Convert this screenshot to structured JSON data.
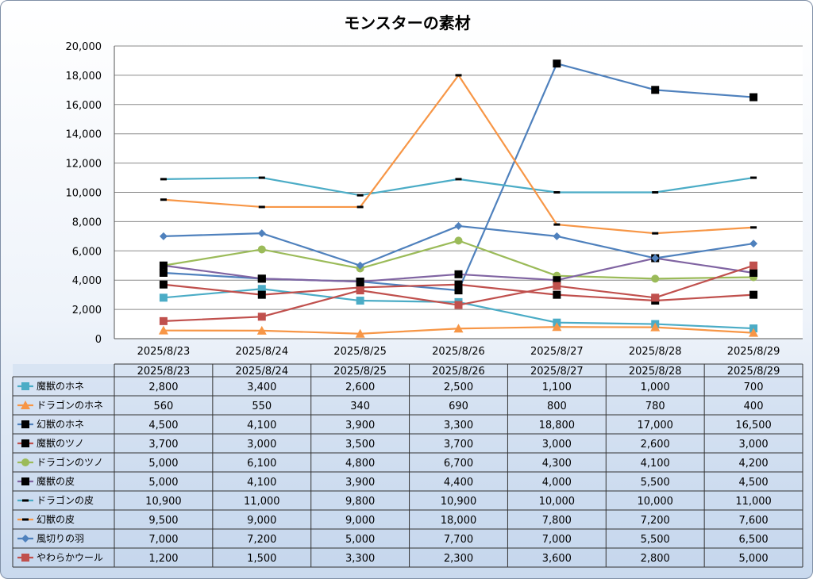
{
  "chart_data": {
    "type": "line",
    "title": "モンスターの素材",
    "categories": [
      "2025/8/23",
      "2025/8/24",
      "2025/8/25",
      "2025/8/26",
      "2025/8/27",
      "2025/8/28",
      "2025/8/29"
    ],
    "ylim": [
      0,
      20000
    ],
    "yticks": [
      "0",
      "2,000",
      "4,000",
      "6,000",
      "8,000",
      "10,000",
      "12,000",
      "14,000",
      "16,000",
      "18,000",
      "20,000"
    ],
    "grid": true,
    "legend": "data-table-below",
    "series": [
      {
        "name": "魔獣のホネ",
        "color": "#4bacc6",
        "marker": "square",
        "values": [
          2800,
          3400,
          2600,
          2500,
          1100,
          1000,
          700
        ],
        "labels": [
          "2,800",
          "3,400",
          "2,600",
          "2,500",
          "1,100",
          "1,000",
          "700"
        ]
      },
      {
        "name": "ドラゴンのホネ",
        "color": "#f79646",
        "marker": "triangle",
        "values": [
          560,
          550,
          340,
          690,
          800,
          780,
          400
        ],
        "labels": [
          "560",
          "550",
          "340",
          "690",
          "800",
          "780",
          "400"
        ]
      },
      {
        "name": "幻獣のホネ",
        "color": "#4f81bd",
        "marker": "blacksquare",
        "values": [
          4500,
          4100,
          3900,
          3300,
          18800,
          17000,
          16500
        ],
        "labels": [
          "4,500",
          "4,100",
          "3,900",
          "3,300",
          "18,800",
          "17,000",
          "16,500"
        ]
      },
      {
        "name": "魔獣のツノ",
        "color": "#c0504d",
        "marker": "blacksquare",
        "values": [
          3700,
          3000,
          3500,
          3700,
          3000,
          2600,
          3000
        ],
        "labels": [
          "3,700",
          "3,000",
          "3,500",
          "3,700",
          "3,000",
          "2,600",
          "3,000"
        ]
      },
      {
        "name": "ドラゴンのツノ",
        "color": "#9bbb59",
        "marker": "circle",
        "values": [
          5000,
          6100,
          4800,
          6700,
          4300,
          4100,
          4200
        ],
        "labels": [
          "5,000",
          "6,100",
          "4,800",
          "6,700",
          "4,300",
          "4,100",
          "4,200"
        ]
      },
      {
        "name": "魔獣の皮",
        "color": "#8064a2",
        "marker": "blacksquare",
        "values": [
          5000,
          4100,
          3900,
          4400,
          4000,
          5500,
          4500
        ],
        "labels": [
          "5,000",
          "4,100",
          "3,900",
          "4,400",
          "4,000",
          "5,500",
          "4,500"
        ]
      },
      {
        "name": "ドラゴンの皮",
        "color": "#4bacc6",
        "marker": "dash",
        "values": [
          10900,
          11000,
          9800,
          10900,
          10000,
          10000,
          11000
        ],
        "labels": [
          "10,900",
          "11,000",
          "9,800",
          "10,900",
          "10,000",
          "10,000",
          "11,000"
        ]
      },
      {
        "name": "幻獣の皮",
        "color": "#f79646",
        "marker": "dash",
        "values": [
          9500,
          9000,
          9000,
          18000,
          7800,
          7200,
          7600
        ],
        "labels": [
          "9,500",
          "9,000",
          "9,000",
          "18,000",
          "7,800",
          "7,200",
          "7,600"
        ]
      },
      {
        "name": "風切りの羽",
        "color": "#4f81bd",
        "marker": "diamond",
        "values": [
          7000,
          7200,
          5000,
          7700,
          7000,
          5500,
          6500
        ],
        "labels": [
          "7,000",
          "7,200",
          "5,000",
          "7,700",
          "7,000",
          "5,500",
          "6,500"
        ]
      },
      {
        "name": "やわらかウール",
        "color": "#c0504d",
        "marker": "square",
        "values": [
          1200,
          1500,
          3300,
          2300,
          3600,
          2800,
          5000
        ],
        "labels": [
          "1,200",
          "1,500",
          "3,300",
          "2,300",
          "3,600",
          "2,800",
          "5,000"
        ]
      }
    ]
  }
}
